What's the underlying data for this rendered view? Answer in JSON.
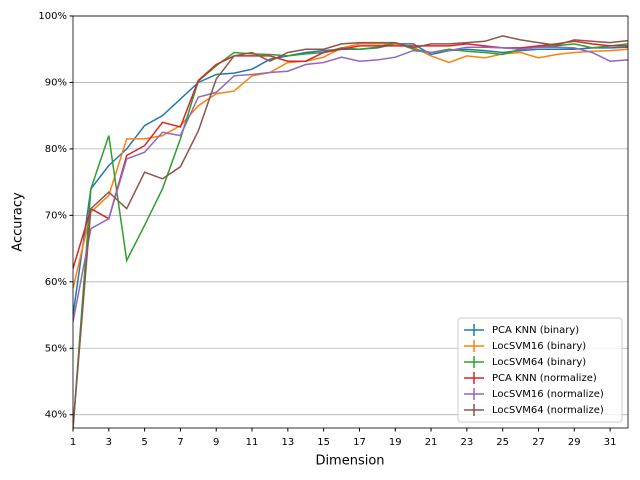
{
  "chart_data": {
    "type": "line",
    "x_label": "Dimension",
    "y_label": "Accuracy",
    "x": [
      1,
      2,
      3,
      4,
      5,
      6,
      7,
      8,
      9,
      10,
      11,
      12,
      13,
      14,
      15,
      16,
      17,
      18,
      19,
      20,
      21,
      22,
      23,
      24,
      25,
      26,
      27,
      28,
      29,
      30,
      31,
      32
    ],
    "xlim": [
      1,
      32
    ],
    "xticks": [
      1,
      3,
      5,
      7,
      9,
      11,
      13,
      15,
      17,
      19,
      21,
      23,
      25,
      27,
      29,
      31
    ],
    "ylim": [
      38,
      100
    ],
    "yticks": [
      {
        "value": 40,
        "label": "40%"
      },
      {
        "value": 50,
        "label": "50%"
      },
      {
        "value": 60,
        "label": "60%"
      },
      {
        "value": 70,
        "label": "70%"
      },
      {
        "value": 80,
        "label": "80%"
      },
      {
        "value": 90,
        "label": "90%"
      },
      {
        "value": 100,
        "label": "100%"
      }
    ],
    "grid": true,
    "legend": "lower right",
    "series": [
      {
        "name": "PCA KNN (binary)",
        "color": "#1f77b4",
        "values": [
          55,
          74,
          77.5,
          80,
          83.5,
          85,
          87.5,
          90,
          91.2,
          91.4,
          92,
          93.5,
          94,
          94.5,
          94.8,
          95,
          95,
          95.2,
          95.8,
          95.8,
          94.2,
          94.8,
          95,
          94.8,
          94.5,
          94.8,
          95,
          95,
          95,
          95.2,
          95.2,
          95.3
        ]
      },
      {
        "name": "LocSVM16 (binary)",
        "color": "#ff7f0e",
        "values": [
          59,
          70.5,
          73,
          81.5,
          81.5,
          82,
          83.5,
          86.5,
          88.3,
          88.7,
          91,
          91.5,
          93,
          93.2,
          93.8,
          95.2,
          95.8,
          95.8,
          95.8,
          95.3,
          94,
          93,
          94,
          93.7,
          94.3,
          94.5,
          93.7,
          94.2,
          94.5,
          94.7,
          94.8,
          95
        ]
      },
      {
        "name": "LocSVM64 (binary)",
        "color": "#2ca02c",
        "values": [
          38,
          74,
          82,
          63.2,
          68.5,
          74,
          81.5,
          90.2,
          92.5,
          94.5,
          94.3,
          94.2,
          94,
          94.3,
          94.5,
          95.2,
          95,
          95.3,
          96,
          95,
          94.5,
          95,
          94.7,
          94.5,
          94.2,
          95,
          95.5,
          95.5,
          95.8,
          95.2,
          95.5,
          95.8
        ]
      },
      {
        "name": "PCA KNN (normalize)",
        "color": "#d62728",
        "values": [
          62,
          71,
          69.5,
          79,
          80.5,
          84,
          83.3,
          90.3,
          92.7,
          94,
          94,
          94,
          93.2,
          93.2,
          94.5,
          95,
          95.5,
          95.5,
          95.5,
          95.5,
          95.5,
          95.5,
          95.8,
          95.5,
          95.2,
          95.2,
          95.5,
          95.8,
          96.2,
          95.8,
          95.5,
          95.5
        ]
      },
      {
        "name": "LocSVM16 (normalize)",
        "color": "#9467bd",
        "values": [
          54,
          68,
          69.5,
          78.5,
          79.5,
          82.5,
          82,
          87.8,
          88.5,
          91,
          91.2,
          91.5,
          91.7,
          92.7,
          93,
          93.8,
          93.2,
          93.4,
          93.8,
          94.8,
          94.5,
          94.8,
          95.3,
          95.3,
          95.2,
          95,
          95.3,
          95.3,
          95.2,
          94.5,
          93.2,
          93.4
        ]
      },
      {
        "name": "LocSVM64 (normalize)",
        "color": "#8c564b",
        "values": [
          38,
          71,
          73.5,
          71,
          76.5,
          75.5,
          77.3,
          82.7,
          90.5,
          94,
          94.5,
          93.2,
          94.5,
          95,
          95,
          95.8,
          96,
          96,
          96,
          95.2,
          95.8,
          95.8,
          96,
          96.2,
          97,
          96.4,
          96,
          95.6,
          96.4,
          96.2,
          96,
          96.3
        ]
      }
    ]
  }
}
